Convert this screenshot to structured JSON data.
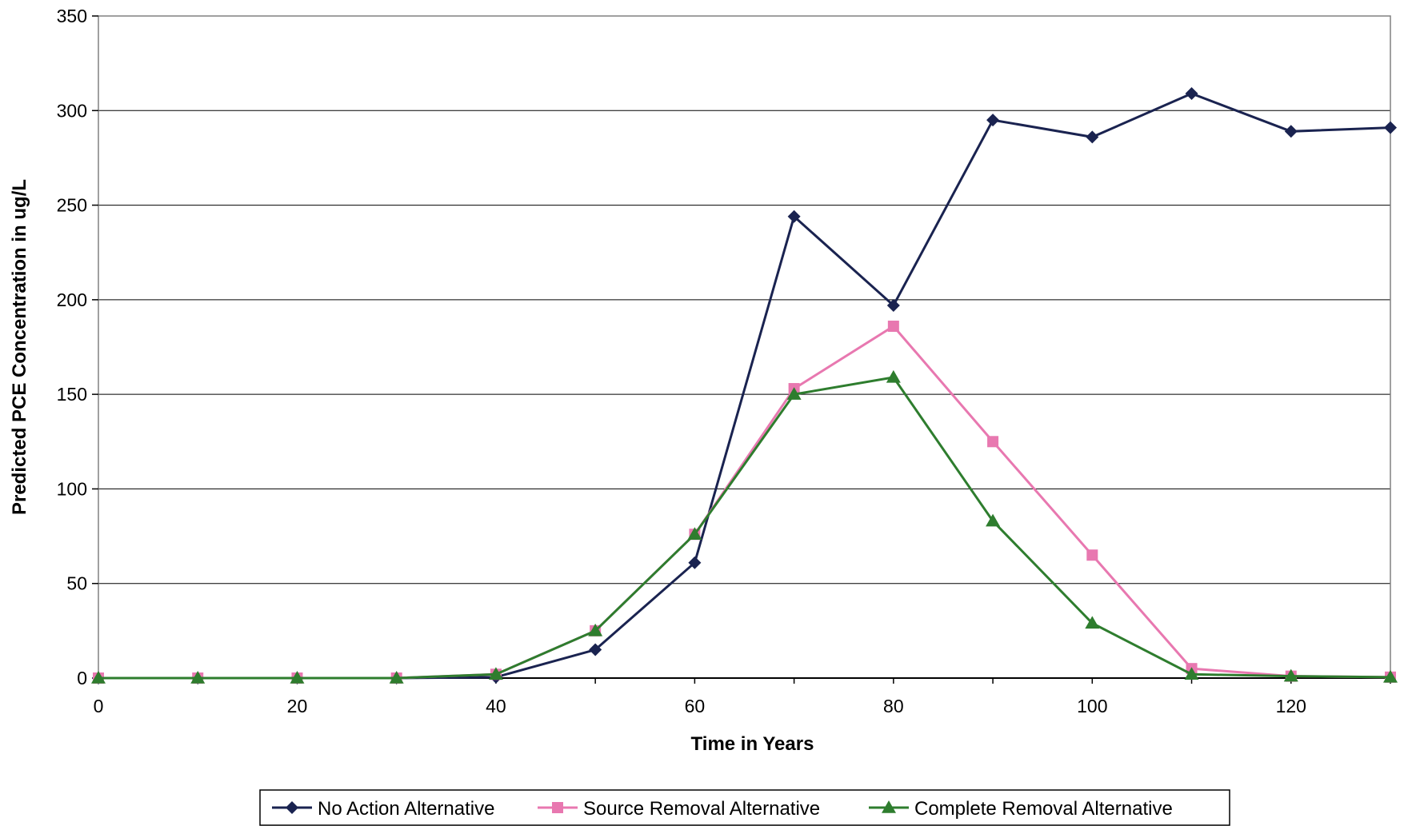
{
  "chart_data": {
    "type": "line",
    "title": "",
    "xlabel": "Time in Years",
    "ylabel": "Predicted PCE Concentration in ug/L",
    "xlim": [
      0,
      130
    ],
    "ylim": [
      0,
      350
    ],
    "x_ticks": [
      0,
      20,
      40,
      60,
      80,
      100,
      120
    ],
    "y_ticks": [
      0,
      50,
      100,
      150,
      200,
      250,
      300,
      350
    ],
    "grid": "horizontal",
    "legend_position": "bottom",
    "x": [
      0,
      10,
      20,
      30,
      40,
      50,
      60,
      70,
      80,
      90,
      100,
      110,
      120,
      130
    ],
    "series": [
      {
        "name": "No Action Alternative",
        "color": "#1a2350",
        "marker": "diamond",
        "values": [
          0,
          0,
          0,
          0,
          0.5,
          15,
          61,
          244,
          197,
          295,
          286,
          309,
          289,
          291
        ]
      },
      {
        "name": "Source Removal Alternative",
        "color": "#e878b0",
        "marker": "square",
        "values": [
          0,
          0,
          0,
          0,
          2,
          25,
          76,
          153,
          186,
          125,
          65,
          5,
          1,
          0.5
        ]
      },
      {
        "name": "Complete Removal Alternative",
        "color": "#2e7d2e",
        "marker": "triangle",
        "values": [
          0,
          0,
          0,
          0,
          2,
          25,
          76,
          150,
          159,
          83,
          29,
          2,
          1,
          0.5
        ]
      }
    ]
  }
}
